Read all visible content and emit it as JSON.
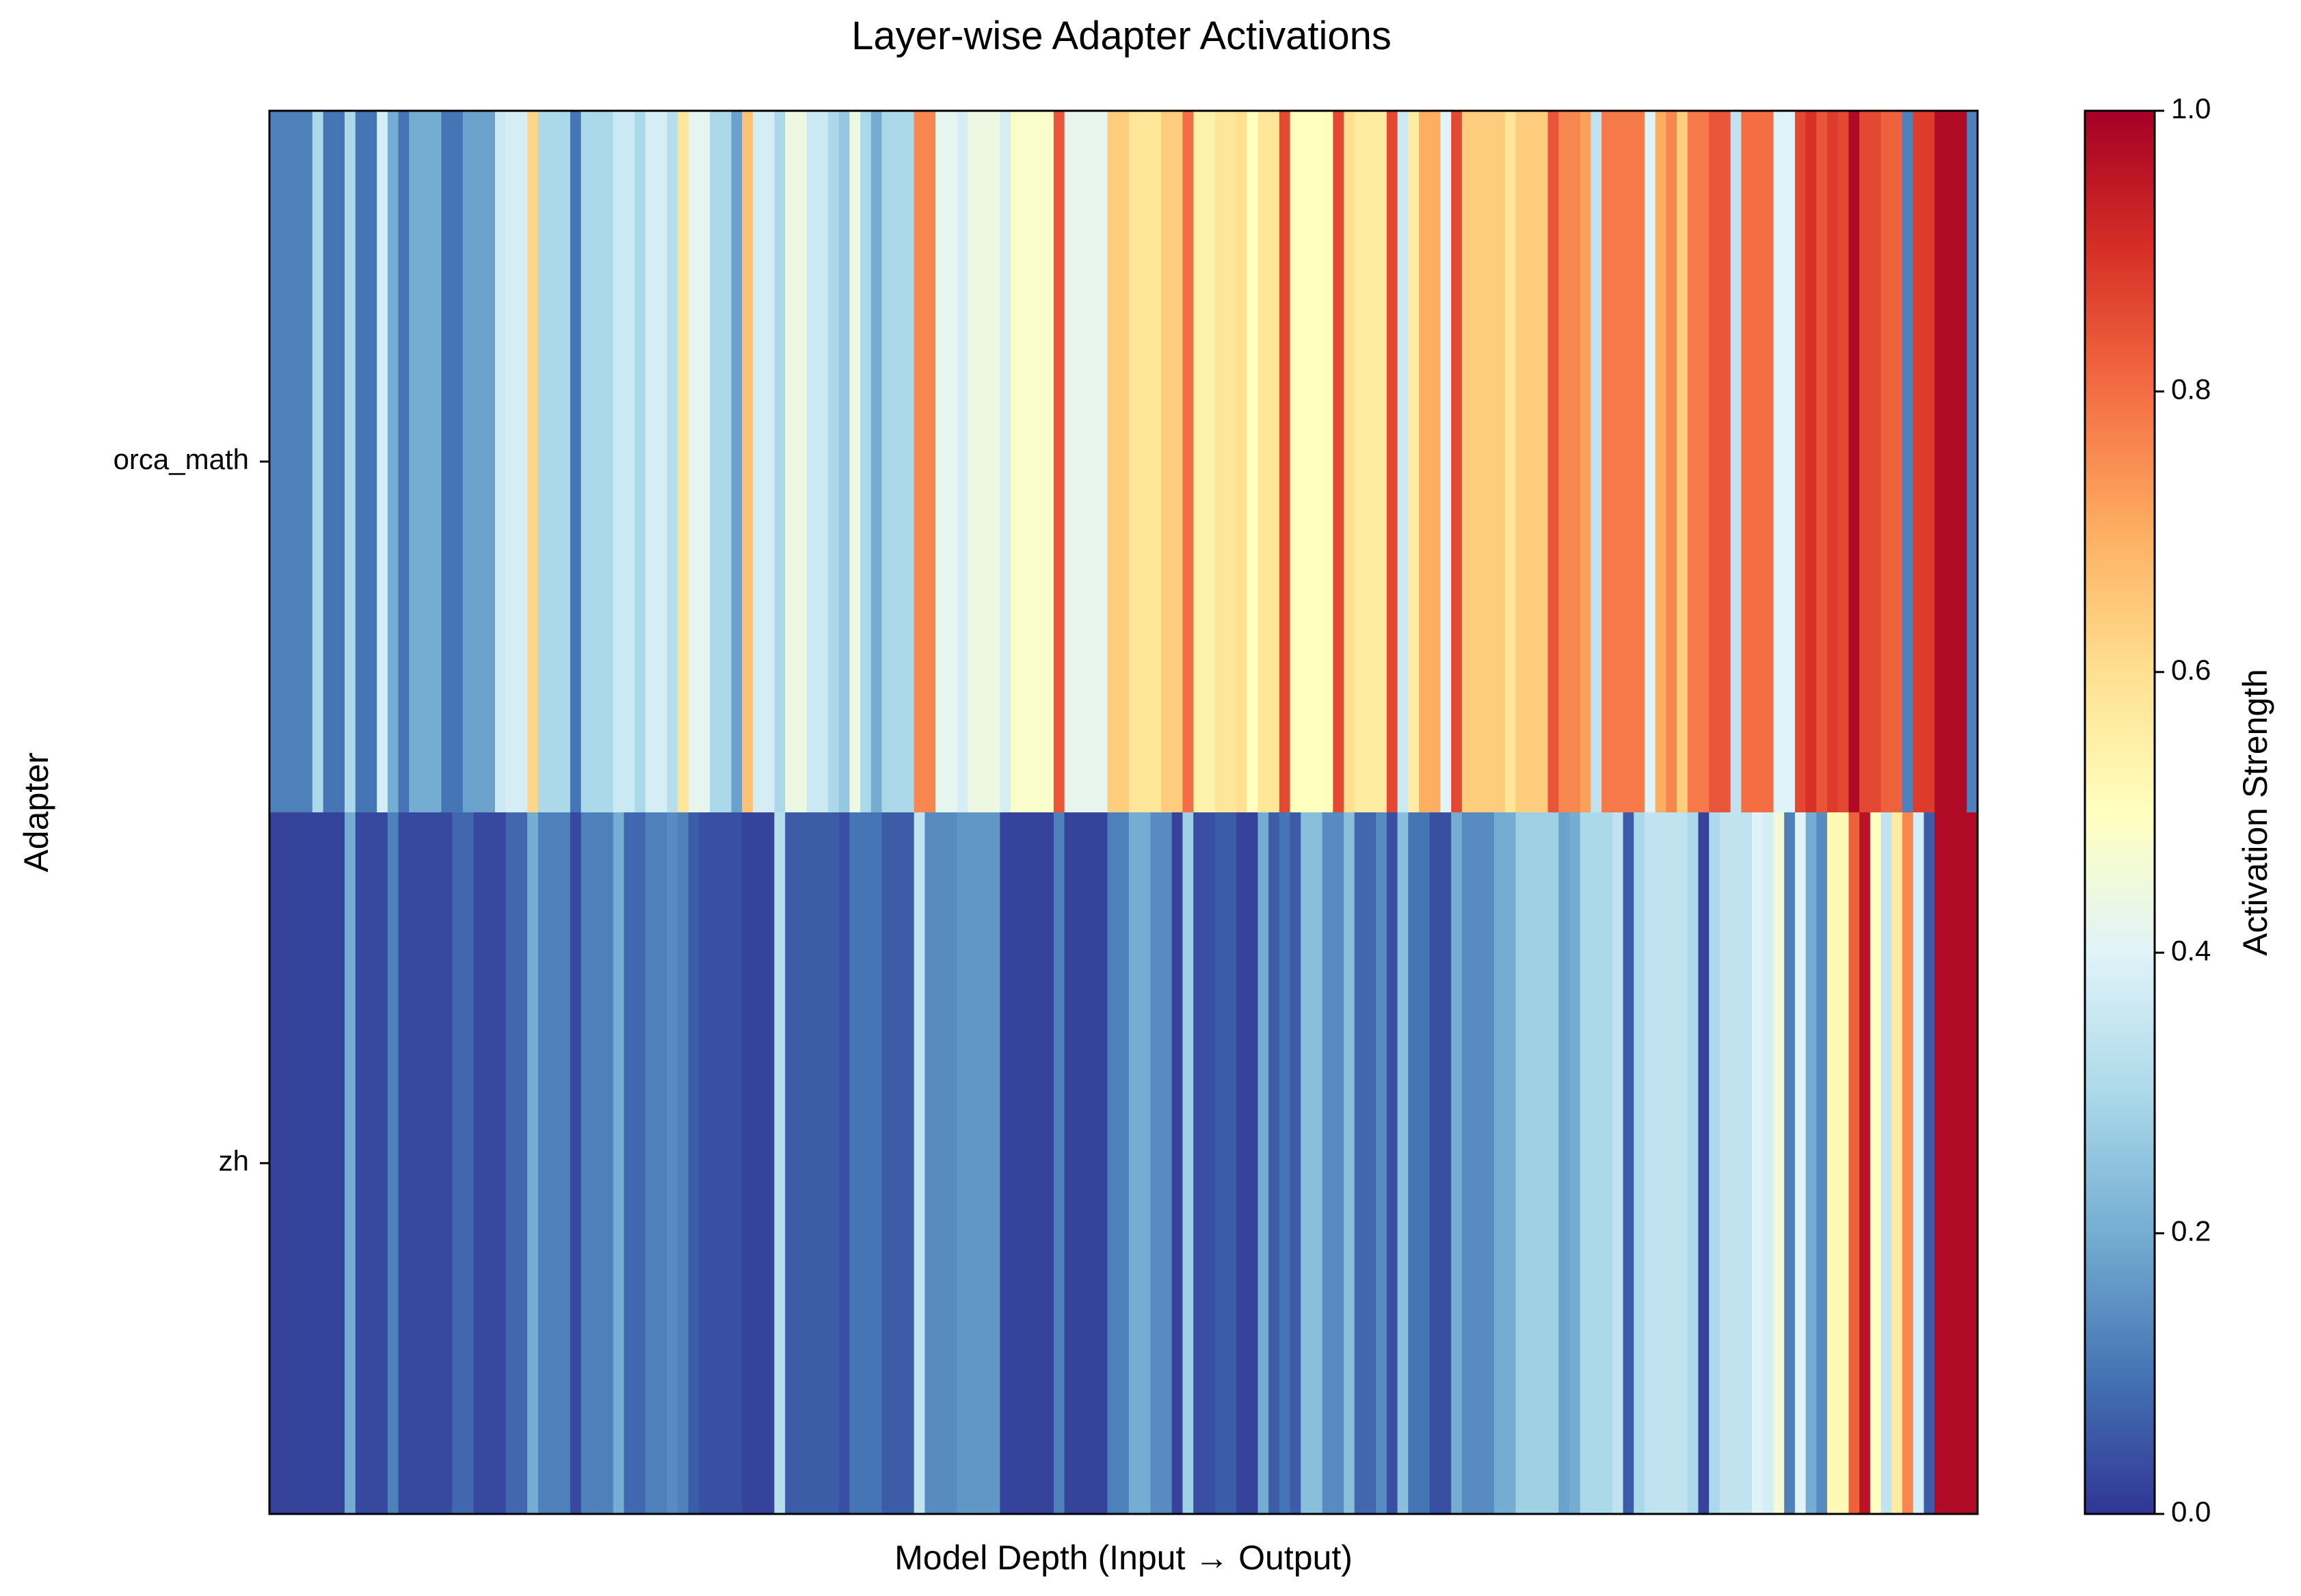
{
  "chart_data": {
    "type": "heatmap",
    "title": "Layer-wise Adapter Activations",
    "xlabel": "Model Depth (Input → Output)",
    "ylabel": "Adapter",
    "rows": [
      "orca_math",
      "zh"
    ],
    "colorbar": {
      "label": "Activation Strength",
      "range": [
        0.0,
        1.0
      ],
      "ticks": [
        "0.0",
        "0.2",
        "0.4",
        "0.6",
        "0.8",
        "1.0"
      ],
      "colormap": "RdYlBu_r"
    },
    "values": [
      [
        0.12,
        0.12,
        0.12,
        0.12,
        0.3,
        0.1,
        0.1,
        0.3,
        0.1,
        0.1,
        0.38,
        0.2,
        0.1,
        0.2,
        0.2,
        0.2,
        0.1,
        0.1,
        0.18,
        0.18,
        0.18,
        0.36,
        0.38,
        0.38,
        0.62,
        0.3,
        0.3,
        0.3,
        0.1,
        0.3,
        0.3,
        0.3,
        0.36,
        0.36,
        0.3,
        0.38,
        0.38,
        0.32,
        0.58,
        0.42,
        0.42,
        0.3,
        0.3,
        0.18,
        0.66,
        0.38,
        0.38,
        0.3,
        0.44,
        0.44,
        0.36,
        0.36,
        0.3,
        0.26,
        0.44,
        0.3,
        0.2,
        0.3,
        0.3,
        0.3,
        0.76,
        0.76,
        0.42,
        0.42,
        0.38,
        0.44,
        0.44,
        0.44,
        0.38,
        0.48,
        0.48,
        0.48,
        0.48,
        0.84,
        0.42,
        0.42,
        0.42,
        0.42,
        0.64,
        0.64,
        0.58,
        0.58,
        0.58,
        0.64,
        0.64,
        0.8,
        0.54,
        0.54,
        0.58,
        0.58,
        0.6,
        0.5,
        0.58,
        0.58,
        0.86,
        0.5,
        0.5,
        0.5,
        0.5,
        0.86,
        0.6,
        0.56,
        0.56,
        0.56,
        0.86,
        0.36,
        0.56,
        0.7,
        0.7,
        0.4,
        0.86,
        0.64,
        0.64,
        0.64,
        0.64,
        0.58,
        0.64,
        0.64,
        0.64,
        0.84,
        0.76,
        0.76,
        0.72,
        0.34,
        0.78,
        0.78,
        0.78,
        0.78,
        0.4,
        0.7,
        0.76,
        0.64,
        0.78,
        0.78,
        0.84,
        0.84,
        0.34,
        0.8,
        0.8,
        0.8,
        0.4,
        0.4,
        0.86,
        0.9,
        0.84,
        0.88,
        0.86,
        0.98,
        0.86,
        0.86,
        0.82,
        0.82,
        0.12,
        0.88,
        0.88,
        0.98,
        0.98,
        0.98,
        0.12
      ],
      [
        0.02,
        0.02,
        0.02,
        0.02,
        0.02,
        0.02,
        0.02,
        0.2,
        0.03,
        0.03,
        0.03,
        0.12,
        0.03,
        0.03,
        0.03,
        0.03,
        0.03,
        0.08,
        0.08,
        0.03,
        0.03,
        0.03,
        0.08,
        0.08,
        0.2,
        0.12,
        0.12,
        0.12,
        0.03,
        0.12,
        0.12,
        0.12,
        0.2,
        0.08,
        0.08,
        0.12,
        0.12,
        0.14,
        0.12,
        0.06,
        0.04,
        0.04,
        0.04,
        0.04,
        0.02,
        0.02,
        0.02,
        0.32,
        0.06,
        0.06,
        0.06,
        0.06,
        0.06,
        0.04,
        0.1,
        0.1,
        0.1,
        0.06,
        0.06,
        0.06,
        0.34,
        0.14,
        0.14,
        0.14,
        0.16,
        0.16,
        0.16,
        0.16,
        0.02,
        0.02,
        0.02,
        0.02,
        0.02,
        0.12,
        0.02,
        0.02,
        0.02,
        0.02,
        0.12,
        0.12,
        0.2,
        0.2,
        0.14,
        0.14,
        0.02,
        0.28,
        0.04,
        0.04,
        0.06,
        0.06,
        0.02,
        0.02,
        0.2,
        0.06,
        0.1,
        0.06,
        0.24,
        0.24,
        0.14,
        0.14,
        0.24,
        0.08,
        0.08,
        0.14,
        0.04,
        0.24,
        0.1,
        0.1,
        0.04,
        0.04,
        0.2,
        0.14,
        0.14,
        0.14,
        0.2,
        0.2,
        0.28,
        0.28,
        0.28,
        0.28,
        0.18,
        0.2,
        0.3,
        0.3,
        0.3,
        0.34,
        0.06,
        0.3,
        0.34,
        0.34,
        0.34,
        0.34,
        0.3,
        0.02,
        0.3,
        0.34,
        0.34,
        0.34,
        0.4,
        0.38,
        0.46,
        0.12,
        0.4,
        0.2,
        0.14,
        0.52,
        0.52,
        0.82,
        0.96,
        0.5,
        0.34,
        0.56,
        0.76,
        0.38,
        0.06,
        0.98,
        0.98,
        0.98,
        0.98
      ]
    ]
  }
}
